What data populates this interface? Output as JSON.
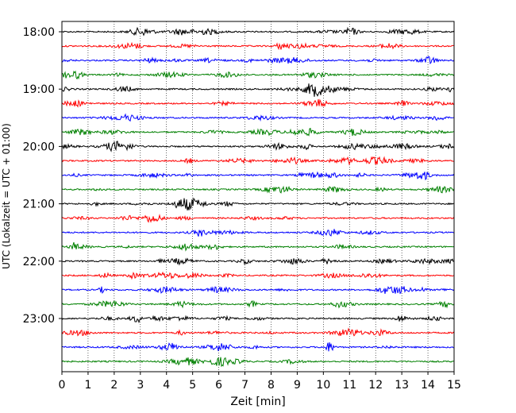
{
  "chart_data": {
    "type": "line",
    "title": "",
    "xlabel": "Zeit  [min]",
    "ylabel": "UTC (Lokalzeit = UTC + 01:00)",
    "xlim": [
      0,
      15
    ],
    "x_ticks": [
      "0",
      "1",
      "2",
      "3",
      "4",
      "5",
      "6",
      "7",
      "8",
      "9",
      "10",
      "11",
      "12",
      "13",
      "14",
      "15"
    ],
    "y_tick_labels": [
      "18:00",
      "19:00",
      "20:00",
      "21:00",
      "22:00",
      "23:00"
    ],
    "grid": "vertical dotted lines at each minute",
    "trace_interval_minutes": 15,
    "trace_start_times": [
      "18:00",
      "18:15",
      "18:30",
      "18:45",
      "19:00",
      "19:15",
      "19:30",
      "19:45",
      "20:00",
      "20:15",
      "20:30",
      "20:45",
      "21:00",
      "21:15",
      "21:30",
      "21:45",
      "22:00",
      "22:15",
      "22:30",
      "22:45",
      "23:00",
      "23:15",
      "23:30",
      "23:45"
    ],
    "color_cycle": [
      "#000000",
      "#ff0000",
      "#0000ff",
      "#008000"
    ]
  }
}
